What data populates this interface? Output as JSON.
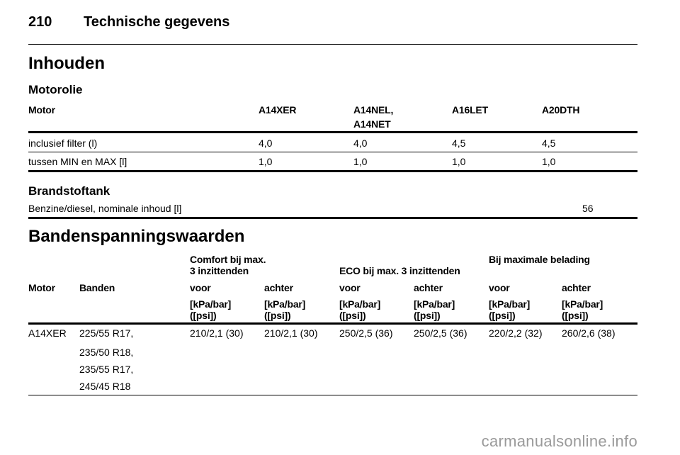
{
  "header": {
    "page_number": "210",
    "section_title": "Technische gegevens"
  },
  "contents_heading": "Inhouden",
  "oil": {
    "heading": "Motorolie",
    "columns": [
      "Motor",
      "A14XER",
      "A14NEL,",
      "A16LET",
      "A20DTH"
    ],
    "column_line2": "A14NET",
    "rows": [
      {
        "label": "inclusief filter (l)",
        "values": [
          "4,0",
          "4,0",
          "4,5",
          "4,5"
        ]
      },
      {
        "label": "tussen MIN en MAX [l]",
        "values": [
          "1,0",
          "1,0",
          "1,0",
          "1,0"
        ]
      }
    ]
  },
  "fuel": {
    "heading": "Brandstoftank",
    "label": "Benzine/diesel, nominale inhoud [l]",
    "value": "56"
  },
  "tyre": {
    "heading": "Bandenspanningswaarden",
    "group_comfort_line1": "Comfort bij max.",
    "group_comfort_line2": "3 inzittenden",
    "group_eco": "ECO bij max. 3 inzittenden",
    "group_max": "Bij maximale belading",
    "col_motor": "Motor",
    "col_tyres": "Banden",
    "col_front": "voor",
    "col_rear": "achter",
    "unit_line1": "[kPa/bar]",
    "unit_line2": "([psi])",
    "row": {
      "motor": "A14XER",
      "tyres": [
        "225/55 R17,",
        "235/50 R18,",
        "235/55 R17,",
        "245/45 R18"
      ],
      "values": [
        "210/2,1 (30)",
        "210/2,1 (30)",
        "250/2,5 (36)",
        "250/2,5 (36)",
        "220/2,2 (32)",
        "260/2,6 (38)"
      ]
    }
  },
  "watermark": "carmanualsonline.info"
}
